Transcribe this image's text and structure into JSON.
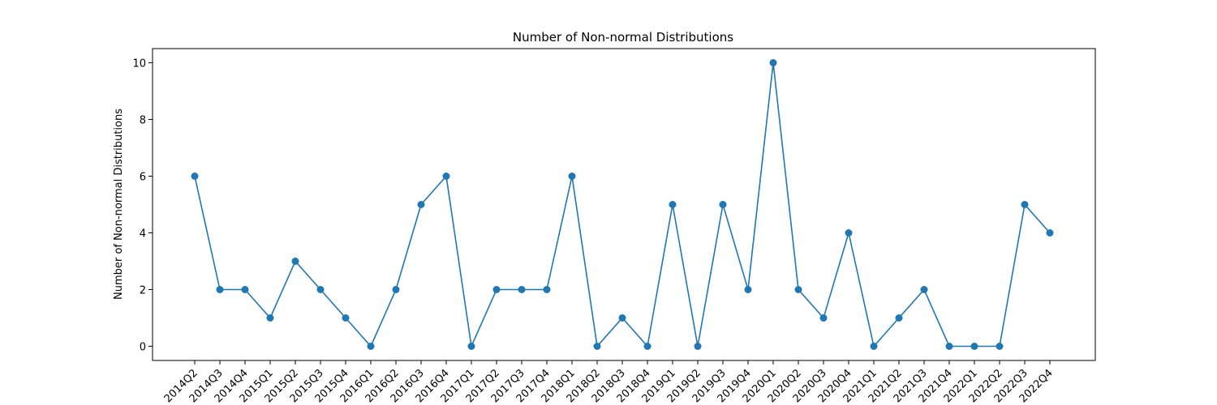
{
  "chart_data": {
    "type": "line",
    "title": "Number of Non-normal Distributions",
    "xlabel": "",
    "ylabel": "Number of Non-normal Distributions",
    "ylim": [
      -0.5,
      10.5
    ],
    "yticks": [
      0,
      2,
      4,
      6,
      8,
      10
    ],
    "grid": false,
    "marker": "circle",
    "color": "#1f77b4",
    "categories": [
      "2014Q2",
      "2014Q3",
      "2014Q4",
      "2015Q1",
      "2015Q2",
      "2015Q3",
      "2015Q4",
      "2016Q1",
      "2016Q2",
      "2016Q3",
      "2016Q4",
      "2017Q1",
      "2017Q2",
      "2017Q3",
      "2017Q4",
      "2018Q1",
      "2018Q2",
      "2018Q3",
      "2018Q4",
      "2019Q1",
      "2019Q2",
      "2019Q3",
      "2019Q4",
      "2020Q1",
      "2020Q2",
      "2020Q3",
      "2020Q4",
      "2021Q1",
      "2021Q2",
      "2021Q3",
      "2021Q4",
      "2022Q1",
      "2022Q2",
      "2022Q3",
      "2022Q4"
    ],
    "values": [
      6,
      2,
      2,
      1,
      3,
      2,
      1,
      0,
      2,
      5,
      6,
      0,
      2,
      2,
      2,
      6,
      0,
      1,
      0,
      5,
      0,
      5,
      2,
      10,
      2,
      1,
      4,
      0,
      1,
      2,
      0,
      0,
      0,
      5,
      4
    ]
  }
}
